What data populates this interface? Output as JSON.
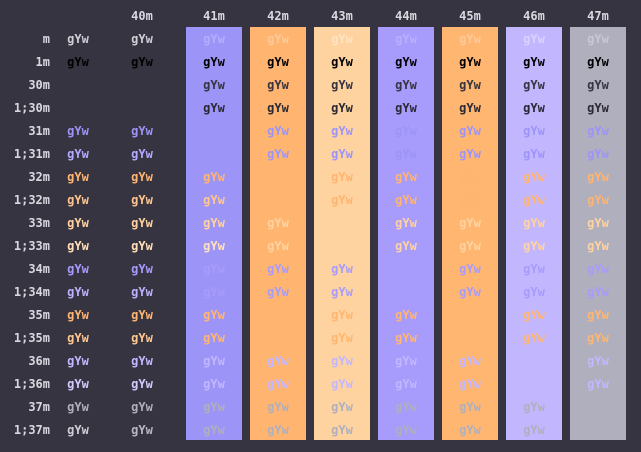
{
  "terminal": {
    "background": "#363440",
    "label_color": "#d8d8e0",
    "sample_text": "gYw"
  },
  "columns": [
    {
      "label": "",
      "bg": null
    },
    {
      "label": "40m",
      "bg": null
    },
    {
      "label": "41m",
      "bg": "#9d94f7"
    },
    {
      "label": "42m",
      "bg": "#ffb470"
    },
    {
      "label": "43m",
      "bg": "#ffd3a0"
    },
    {
      "label": "44m",
      "bg": "#a79bfc"
    },
    {
      "label": "45m",
      "bg": "#ffb671"
    },
    {
      "label": "46m",
      "bg": "#c2b7ff"
    },
    {
      "label": "47m",
      "bg": "#b0afbd"
    }
  ],
  "rows": [
    {
      "label": "m",
      "cells": [
        {
          "t": "gYw",
          "c": "#cfcfd6"
        },
        {
          "t": "gYw",
          "c": "#cfcfd6"
        },
        {
          "t": "gYw",
          "c": "#b4adff"
        },
        {
          "t": "gYw",
          "c": "#ffca98"
        },
        {
          "t": "gYw",
          "c": "#ffe3c2"
        },
        {
          "t": "gYw",
          "c": "#b8b0ff"
        },
        {
          "t": "gYw",
          "c": "#ffca98"
        },
        {
          "t": "gYw",
          "c": "#d8d2ff"
        },
        {
          "t": "gYw",
          "c": "#c8c8d4"
        }
      ]
    },
    {
      "label": "1m",
      "cells": [
        {
          "t": "gYw",
          "c": "#000000"
        },
        {
          "t": "gYw",
          "c": "#000000"
        },
        {
          "t": "gYw",
          "c": "#000000"
        },
        {
          "t": "gYw",
          "c": "#000000"
        },
        {
          "t": "gYw",
          "c": "#000000"
        },
        {
          "t": "gYw",
          "c": "#000000"
        },
        {
          "t": "gYw",
          "c": "#000000"
        },
        {
          "t": "gYw",
          "c": "#000000"
        },
        {
          "t": "gYw",
          "c": "#000000"
        }
      ]
    },
    {
      "label": "30m",
      "cells": [
        {
          "t": "",
          "c": "#363440"
        },
        {
          "t": "",
          "c": "#363440"
        },
        {
          "t": "gYw",
          "c": "#363440"
        },
        {
          "t": "gYw",
          "c": "#363440"
        },
        {
          "t": "gYw",
          "c": "#363440"
        },
        {
          "t": "gYw",
          "c": "#363440"
        },
        {
          "t": "gYw",
          "c": "#363440"
        },
        {
          "t": "gYw",
          "c": "#363440"
        },
        {
          "t": "gYw",
          "c": "#363440"
        }
      ]
    },
    {
      "label": "1;30m",
      "cells": [
        {
          "t": "",
          "c": "#363440"
        },
        {
          "t": "",
          "c": "#363440"
        },
        {
          "t": "gYw",
          "c": "#2a2833"
        },
        {
          "t": "gYw",
          "c": "#2a2833"
        },
        {
          "t": "gYw",
          "c": "#2a2833"
        },
        {
          "t": "gYw",
          "c": "#2a2833"
        },
        {
          "t": "gYw",
          "c": "#2a2833"
        },
        {
          "t": "gYw",
          "c": "#2a2833"
        },
        {
          "t": "gYw",
          "c": "#2a2833"
        }
      ]
    },
    {
      "label": "31m",
      "cells": [
        {
          "t": "gYw",
          "c": "#9d94f7"
        },
        {
          "t": "gYw",
          "c": "#9d94f7"
        },
        {
          "t": "",
          "c": "#9d94f7"
        },
        {
          "t": "gYw",
          "c": "#9d94f7"
        },
        {
          "t": "gYw",
          "c": "#9d94f7"
        },
        {
          "t": "gYw",
          "c": "#9d94f7"
        },
        {
          "t": "gYw",
          "c": "#9d94f7"
        },
        {
          "t": "gYw",
          "c": "#9d94f7"
        },
        {
          "t": "gYw",
          "c": "#9d94f7"
        }
      ]
    },
    {
      "label": "1;31m",
      "cells": [
        {
          "t": "gYw",
          "c": "#b3abff"
        },
        {
          "t": "gYw",
          "c": "#b3abff"
        },
        {
          "t": "",
          "c": "#b3abff"
        },
        {
          "t": "gYw",
          "c": "#9d94f7"
        },
        {
          "t": "gYw",
          "c": "#9d94f7"
        },
        {
          "t": "gYw",
          "c": "#9d94f7"
        },
        {
          "t": "gYw",
          "c": "#9d94f7"
        },
        {
          "t": "gYw",
          "c": "#9d94f7"
        },
        {
          "t": "gYw",
          "c": "#9d94f7"
        }
      ]
    },
    {
      "label": "32m",
      "cells": [
        {
          "t": "gYw",
          "c": "#ffb470"
        },
        {
          "t": "gYw",
          "c": "#ffb470"
        },
        {
          "t": "gYw",
          "c": "#ffb470"
        },
        {
          "t": "",
          "c": "#ffb470"
        },
        {
          "t": "gYw",
          "c": "#ffb470"
        },
        {
          "t": "gYw",
          "c": "#ffb470"
        },
        {
          "t": "gYw",
          "c": "#ffb470"
        },
        {
          "t": "gYw",
          "c": "#ffb470"
        },
        {
          "t": "gYw",
          "c": "#ffb470"
        }
      ]
    },
    {
      "label": "1;32m",
      "cells": [
        {
          "t": "gYw",
          "c": "#ffc68f"
        },
        {
          "t": "gYw",
          "c": "#ffc68f"
        },
        {
          "t": "gYw",
          "c": "#ffc68f"
        },
        {
          "t": "",
          "c": "#ffc68f"
        },
        {
          "t": "gYw",
          "c": "#ffb470"
        },
        {
          "t": "gYw",
          "c": "#ffb470"
        },
        {
          "t": "gYw",
          "c": "#ffb470"
        },
        {
          "t": "gYw",
          "c": "#ffb470"
        },
        {
          "t": "gYw",
          "c": "#ffb470"
        }
      ]
    },
    {
      "label": "33m",
      "cells": [
        {
          "t": "gYw",
          "c": "#ffd3a0"
        },
        {
          "t": "gYw",
          "c": "#ffd3a0"
        },
        {
          "t": "gYw",
          "c": "#ffd3a0"
        },
        {
          "t": "gYw",
          "c": "#ffd3a0"
        },
        {
          "t": "",
          "c": "#ffd3a0"
        },
        {
          "t": "gYw",
          "c": "#ffd3a0"
        },
        {
          "t": "gYw",
          "c": "#ffd3a0"
        },
        {
          "t": "gYw",
          "c": "#ffd3a0"
        },
        {
          "t": "gYw",
          "c": "#ffd3a0"
        }
      ]
    },
    {
      "label": "1;33m",
      "cells": [
        {
          "t": "gYw",
          "c": "#ffe0ba"
        },
        {
          "t": "gYw",
          "c": "#ffe0ba"
        },
        {
          "t": "gYw",
          "c": "#ffe0ba"
        },
        {
          "t": "gYw",
          "c": "#ffd3a0"
        },
        {
          "t": "",
          "c": "#ffd3a0"
        },
        {
          "t": "gYw",
          "c": "#ffd3a0"
        },
        {
          "t": "gYw",
          "c": "#ffd3a0"
        },
        {
          "t": "gYw",
          "c": "#ffd3a0"
        },
        {
          "t": "gYw",
          "c": "#ffd3a0"
        }
      ]
    },
    {
      "label": "34m",
      "cells": [
        {
          "t": "gYw",
          "c": "#a79bfc"
        },
        {
          "t": "gYw",
          "c": "#a79bfc"
        },
        {
          "t": "gYw",
          "c": "#a79bfc"
        },
        {
          "t": "gYw",
          "c": "#a79bfc"
        },
        {
          "t": "gYw",
          "c": "#a79bfc"
        },
        {
          "t": "",
          "c": "#a79bfc"
        },
        {
          "t": "gYw",
          "c": "#a79bfc"
        },
        {
          "t": "gYw",
          "c": "#a79bfc"
        },
        {
          "t": "gYw",
          "c": "#a79bfc"
        }
      ]
    },
    {
      "label": "1;34m",
      "cells": [
        {
          "t": "gYw",
          "c": "#bcb2ff"
        },
        {
          "t": "gYw",
          "c": "#bcb2ff"
        },
        {
          "t": "gYw",
          "c": "#a79bfc"
        },
        {
          "t": "gYw",
          "c": "#a79bfc"
        },
        {
          "t": "gYw",
          "c": "#a79bfc"
        },
        {
          "t": "",
          "c": "#a79bfc"
        },
        {
          "t": "gYw",
          "c": "#a79bfc"
        },
        {
          "t": "gYw",
          "c": "#a79bfc"
        },
        {
          "t": "gYw",
          "c": "#a79bfc"
        }
      ]
    },
    {
      "label": "35m",
      "cells": [
        {
          "t": "gYw",
          "c": "#ffb671"
        },
        {
          "t": "gYw",
          "c": "#ffb671"
        },
        {
          "t": "gYw",
          "c": "#ffb671"
        },
        {
          "t": "gYw",
          "c": "#ffb671"
        },
        {
          "t": "gYw",
          "c": "#ffb671"
        },
        {
          "t": "gYw",
          "c": "#ffb671"
        },
        {
          "t": "",
          "c": "#ffb671"
        },
        {
          "t": "gYw",
          "c": "#ffb671"
        },
        {
          "t": "gYw",
          "c": "#ffb671"
        }
      ]
    },
    {
      "label": "1;35m",
      "cells": [
        {
          "t": "gYw",
          "c": "#ffc890"
        },
        {
          "t": "gYw",
          "c": "#ffc890"
        },
        {
          "t": "gYw",
          "c": "#ffb671"
        },
        {
          "t": "gYw",
          "c": "#ffb671"
        },
        {
          "t": "gYw",
          "c": "#ffb671"
        },
        {
          "t": "gYw",
          "c": "#ffb671"
        },
        {
          "t": "",
          "c": "#ffb671"
        },
        {
          "t": "gYw",
          "c": "#ffb671"
        },
        {
          "t": "gYw",
          "c": "#ffb671"
        }
      ]
    },
    {
      "label": "36m",
      "cells": [
        {
          "t": "gYw",
          "c": "#c2b7ff"
        },
        {
          "t": "gYw",
          "c": "#c2b7ff"
        },
        {
          "t": "gYw",
          "c": "#c2b7ff"
        },
        {
          "t": "gYw",
          "c": "#c2b7ff"
        },
        {
          "t": "gYw",
          "c": "#c2b7ff"
        },
        {
          "t": "gYw",
          "c": "#c2b7ff"
        },
        {
          "t": "gYw",
          "c": "#c2b7ff"
        },
        {
          "t": "",
          "c": "#c2b7ff"
        },
        {
          "t": "gYw",
          "c": "#c2b7ff"
        }
      ]
    },
    {
      "label": "1;36m",
      "cells": [
        {
          "t": "gYw",
          "c": "#d4ccff"
        },
        {
          "t": "gYw",
          "c": "#d4ccff"
        },
        {
          "t": "gYw",
          "c": "#c2b7ff"
        },
        {
          "t": "gYw",
          "c": "#c2b7ff"
        },
        {
          "t": "gYw",
          "c": "#c2b7ff"
        },
        {
          "t": "gYw",
          "c": "#c2b7ff"
        },
        {
          "t": "gYw",
          "c": "#c2b7ff"
        },
        {
          "t": "",
          "c": "#c2b7ff"
        },
        {
          "t": "gYw",
          "c": "#c2b7ff"
        }
      ]
    },
    {
      "label": "37m",
      "cells": [
        {
          "t": "gYw",
          "c": "#b0afbd"
        },
        {
          "t": "gYw",
          "c": "#b0afbd"
        },
        {
          "t": "gYw",
          "c": "#b0afbd"
        },
        {
          "t": "gYw",
          "c": "#b0afbd"
        },
        {
          "t": "gYw",
          "c": "#b0afbd"
        },
        {
          "t": "gYw",
          "c": "#b0afbd"
        },
        {
          "t": "gYw",
          "c": "#b0afbd"
        },
        {
          "t": "gYw",
          "c": "#b0afbd"
        },
        {
          "t": "",
          "c": "#b0afbd"
        }
      ]
    },
    {
      "label": "1;37m",
      "cells": [
        {
          "t": "gYw",
          "c": "#cfcfd6"
        },
        {
          "t": "gYw",
          "c": "#b8b8c2"
        },
        {
          "t": "gYw",
          "c": "#b0afbd"
        },
        {
          "t": "gYw",
          "c": "#b0afbd"
        },
        {
          "t": "gYw",
          "c": "#b0afbd"
        },
        {
          "t": "gYw",
          "c": "#b0afbd"
        },
        {
          "t": "gYw",
          "c": "#b0afbd"
        },
        {
          "t": "gYw",
          "c": "#b0afbd"
        },
        {
          "t": "",
          "c": "#b0afbd"
        }
      ]
    }
  ]
}
